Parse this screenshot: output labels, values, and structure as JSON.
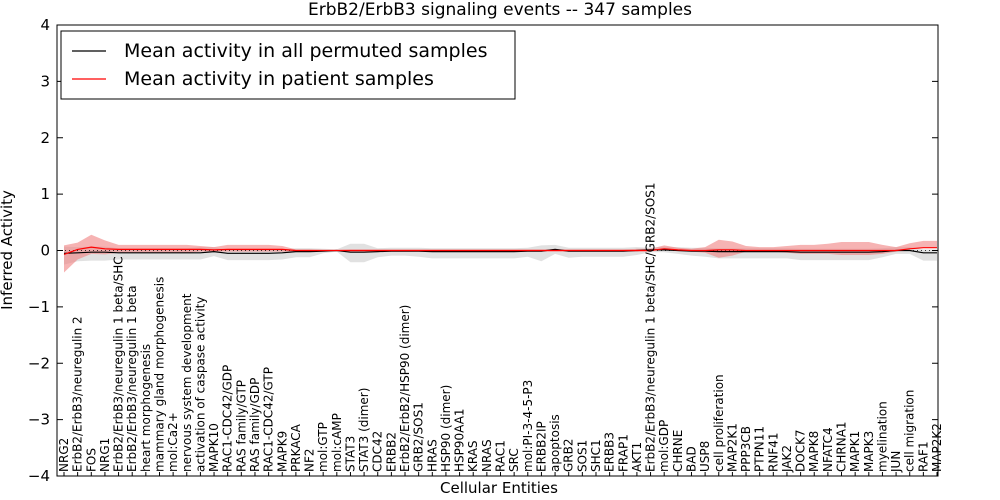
{
  "chart_data": {
    "type": "line",
    "title": "ErbB2/ErbB3 signaling events -- 347 samples",
    "xlabel": "Cellular Entities",
    "ylabel": "Inferred Activity",
    "ylim": [
      -4,
      4
    ],
    "yticks": [
      "−4",
      "−3",
      "−2",
      "−1",
      "0",
      "1",
      "2",
      "3",
      "4"
    ],
    "legend_position": "top-left",
    "colors": {
      "permuted": "#000000",
      "patient": "#ff0000",
      "band_permuted": "#c8c8c8",
      "band_patient": "#f08080"
    },
    "categories": [
      "NRG2",
      "ErbB2/ErbB3/neuregulin 2",
      "FOS",
      "NRG1",
      "ErbB2/ErbB3/neuregulin 1 beta/SHC",
      "ErbB2/ErbB3/neuregulin 1 beta",
      "heart morphogenesis",
      "mammary gland morphogenesis",
      "mol:Ca2+",
      "nervous system development",
      "activation of caspase activity",
      "MAPK10",
      "RAC1-CDC42/GDP",
      "RAS family/GTP",
      "RAS family/GDP",
      "RAC1-CDC42/GTP",
      "MAPK9",
      "PRKACA",
      "NF2",
      "mol:GTP",
      "mol:cAMP",
      "STAT3",
      "STAT3 (dimer)",
      "CDC42",
      "ERBB2",
      "ErbB2/ErbB2/HSP90 (dimer)",
      "GRB2/SOS1",
      "HRAS",
      "HSP90 (dimer)",
      "HSP90AA1",
      "KRAS",
      "NRAS",
      "RAC1",
      "SRC",
      "mol:PI-3-4-5-P3",
      "ERBB2IP",
      "apoptosis",
      "GRB2",
      "SOS1",
      "SHC1",
      "ERBB3",
      "FRAP1",
      "AKT1",
      "ErbB2/ErbB3/neuregulin 1 beta/SHC/GRB2/SOS1",
      "mol:GDP",
      "CHRNE",
      "BAD",
      "USP8",
      "cell proliferation",
      "MAP2K1",
      "PPP3CB",
      "PTPN11",
      "RNF41",
      "JAK2",
      "DOCK7",
      "MAPK8",
      "NFATC4",
      "CHRNA1",
      "MAPK1",
      "MAPK3",
      "myelination",
      "JUN",
      "cell migration",
      "RAF1",
      "MAP2K2"
    ],
    "series": [
      {
        "name": "Mean activity in all permuted samples",
        "color": "#000000",
        "values": [
          -0.05,
          -0.04,
          -0.03,
          -0.03,
          -0.04,
          -0.04,
          -0.04,
          -0.04,
          -0.04,
          -0.04,
          -0.04,
          -0.02,
          -0.05,
          -0.05,
          -0.05,
          -0.05,
          -0.04,
          -0.02,
          -0.02,
          -0.01,
          0.0,
          -0.03,
          -0.03,
          -0.02,
          -0.01,
          -0.01,
          -0.01,
          -0.02,
          -0.02,
          -0.02,
          -0.02,
          -0.02,
          -0.02,
          -0.02,
          -0.01,
          -0.01,
          0.02,
          -0.01,
          -0.01,
          -0.01,
          -0.01,
          -0.01,
          0.0,
          0.01,
          0.01,
          0.0,
          -0.01,
          -0.01,
          -0.02,
          -0.02,
          -0.02,
          -0.02,
          -0.02,
          -0.02,
          -0.03,
          -0.03,
          -0.03,
          -0.03,
          -0.03,
          -0.03,
          -0.02,
          0.0,
          0.0,
          -0.04,
          -0.04
        ],
        "spread_lower": [
          -0.2,
          -0.15,
          -0.15,
          -0.15,
          -0.12,
          -0.12,
          -0.12,
          -0.12,
          -0.12,
          -0.12,
          -0.12,
          -0.08,
          -0.12,
          -0.12,
          -0.12,
          -0.12,
          -0.12,
          -0.1,
          -0.1,
          -0.04,
          -0.02,
          -0.18,
          -0.18,
          -0.1,
          -0.08,
          -0.08,
          -0.1,
          -0.12,
          -0.12,
          -0.12,
          -0.12,
          -0.12,
          -0.12,
          -0.12,
          -0.1,
          -0.18,
          -0.08,
          -0.12,
          -0.1,
          -0.1,
          -0.1,
          -0.1,
          -0.08,
          -0.04,
          -0.04,
          -0.06,
          -0.08,
          -0.1,
          -0.12,
          -0.12,
          -0.12,
          -0.12,
          -0.12,
          -0.12,
          -0.14,
          -0.14,
          -0.14,
          -0.14,
          -0.14,
          -0.14,
          -0.1,
          -0.06,
          -0.06,
          -0.14,
          -0.14
        ],
        "spread_upper": [
          0.12,
          0.1,
          0.1,
          0.1,
          0.08,
          0.08,
          0.08,
          0.08,
          0.08,
          0.08,
          0.1,
          0.08,
          0.06,
          0.06,
          0.06,
          0.06,
          0.06,
          0.06,
          0.06,
          0.04,
          0.02,
          0.15,
          0.15,
          0.06,
          0.06,
          0.06,
          0.06,
          0.06,
          0.06,
          0.06,
          0.06,
          0.06,
          0.06,
          0.06,
          0.06,
          0.1,
          0.08,
          0.06,
          0.06,
          0.06,
          0.06,
          0.06,
          0.06,
          0.04,
          0.06,
          0.06,
          0.06,
          0.06,
          0.06,
          0.06,
          0.06,
          0.06,
          0.06,
          0.06,
          0.06,
          0.06,
          0.06,
          0.06,
          0.06,
          0.06,
          0.06,
          0.06,
          0.06,
          0.06,
          0.06
        ]
      },
      {
        "name": "Mean activity in patient samples",
        "color": "#ff0000",
        "values": [
          -0.07,
          0.02,
          0.06,
          0.03,
          0.02,
          0.02,
          0.02,
          0.02,
          0.02,
          0.02,
          0.02,
          0.01,
          0.02,
          0.02,
          0.02,
          0.02,
          0.02,
          0.0,
          0.0,
          0.0,
          0.0,
          0.0,
          0.0,
          0.0,
          0.0,
          0.0,
          0.0,
          0.0,
          0.0,
          0.0,
          0.0,
          0.0,
          0.0,
          0.0,
          0.0,
          0.0,
          0.0,
          0.0,
          0.0,
          0.0,
          0.0,
          0.0,
          0.0,
          0.0,
          0.03,
          0.01,
          0.0,
          0.0,
          0.01,
          0.01,
          0.0,
          0.0,
          0.0,
          0.0,
          0.0,
          0.0,
          0.0,
          0.0,
          0.0,
          0.0,
          0.0,
          0.0,
          0.03,
          0.05,
          0.05
        ],
        "spread_lower": [
          -0.32,
          -0.18,
          -0.12,
          -0.1,
          -0.06,
          -0.06,
          -0.06,
          -0.06,
          -0.06,
          -0.06,
          -0.04,
          -0.02,
          -0.04,
          -0.04,
          -0.04,
          -0.04,
          -0.04,
          -0.02,
          -0.02,
          -0.01,
          -0.01,
          -0.02,
          -0.02,
          -0.02,
          -0.02,
          -0.02,
          -0.02,
          -0.02,
          -0.02,
          -0.02,
          -0.02,
          -0.02,
          -0.02,
          -0.02,
          -0.02,
          -0.02,
          -0.02,
          -0.02,
          -0.02,
          -0.02,
          -0.02,
          -0.02,
          -0.02,
          -0.02,
          0.0,
          -0.02,
          -0.02,
          -0.04,
          -0.14,
          -0.1,
          -0.02,
          -0.02,
          -0.02,
          -0.04,
          -0.06,
          -0.06,
          -0.06,
          -0.08,
          -0.08,
          -0.08,
          -0.06,
          -0.02,
          0.0,
          0.0,
          0.0
        ],
        "spread_upper": [
          0.16,
          0.12,
          0.22,
          0.15,
          0.08,
          0.08,
          0.08,
          0.08,
          0.08,
          0.08,
          0.06,
          0.05,
          0.08,
          0.08,
          0.08,
          0.08,
          0.06,
          0.02,
          0.02,
          0.01,
          0.01,
          0.02,
          0.02,
          0.02,
          0.02,
          0.02,
          0.02,
          0.02,
          0.02,
          0.02,
          0.02,
          0.02,
          0.02,
          0.02,
          0.02,
          0.02,
          0.02,
          0.02,
          0.02,
          0.02,
          0.02,
          0.02,
          0.03,
          0.03,
          0.06,
          0.04,
          0.03,
          0.06,
          0.18,
          0.15,
          0.08,
          0.06,
          0.06,
          0.08,
          0.1,
          0.1,
          0.12,
          0.15,
          0.15,
          0.15,
          0.1,
          0.06,
          0.1,
          0.12,
          0.12
        ]
      }
    ]
  }
}
